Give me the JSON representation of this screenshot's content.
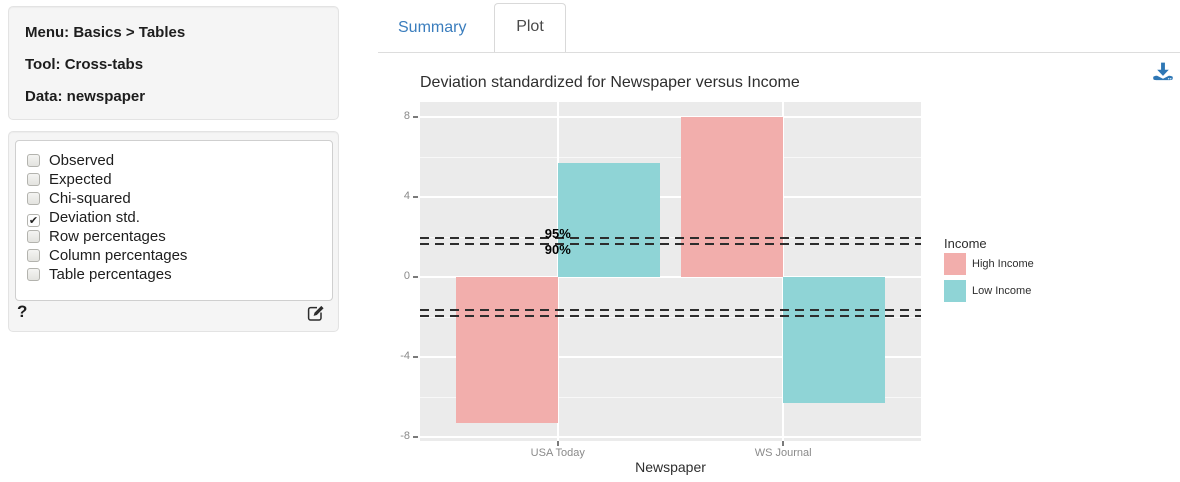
{
  "sidebar": {
    "info": {
      "menu": "Menu: Basics > Tables",
      "tool": "Tool: Cross-tabs",
      "data": "Data: newspaper"
    },
    "checkboxes": [
      {
        "label": "Observed",
        "checked": false
      },
      {
        "label": "Expected",
        "checked": false
      },
      {
        "label": "Chi-squared",
        "checked": false
      },
      {
        "label": "Deviation std.",
        "checked": true
      },
      {
        "label": "Row percentages",
        "checked": false
      },
      {
        "label": "Column percentages",
        "checked": false
      },
      {
        "label": "Table percentages",
        "checked": false
      }
    ],
    "help_label": "?"
  },
  "tabs": [
    {
      "label": "Summary",
      "active": false
    },
    {
      "label": "Plot",
      "active": true
    }
  ],
  "icons": {
    "download": "arrow-down-into-tray",
    "edit": "pencil-square",
    "checkbox_check": "✔"
  },
  "colors": {
    "link_blue": "#3a7dbd",
    "download_blue": "#2e77b5",
    "panel_gray": "#ebebeb",
    "axis_text": "#8a8a8a",
    "ref_line": "#2d2d2d"
  },
  "chart_data": {
    "type": "bar",
    "title": "Deviation standardized for Newspaper versus Income",
    "categories": [
      "USA Today",
      "WS Journal"
    ],
    "series": [
      {
        "name": "High Income",
        "color": "#F2AEAC",
        "values": [
          -7.3,
          8.0
        ]
      },
      {
        "name": "Low Income",
        "color": "#8FD4D6",
        "values": [
          5.7,
          -6.3
        ]
      }
    ],
    "xlabel": "Newspaper",
    "ylabel": "",
    "legend_title": "Income",
    "legend_position": "right",
    "ylim": [
      -8.2,
      8.75
    ],
    "yticks": [
      8,
      4,
      0,
      -4,
      -8
    ],
    "yticks_minor": [
      6,
      2,
      -2,
      -6
    ],
    "grid": true,
    "bar_layout": "dodged",
    "reference_lines": [
      {
        "label": "95%",
        "value": 1.96,
        "style": "dashed"
      },
      {
        "label": "90%",
        "value": 1.645,
        "style": "dashed"
      },
      {
        "label": "",
        "value": -1.645,
        "style": "dashed"
      },
      {
        "label": "",
        "value": -1.96,
        "style": "dashed"
      }
    ]
  }
}
